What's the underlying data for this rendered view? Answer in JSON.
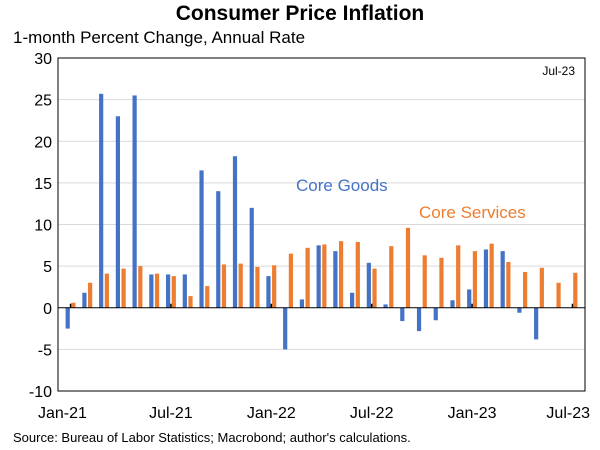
{
  "chart_data": {
    "type": "bar",
    "title": "Consumer Price Inflation",
    "subtitle": "1-month Percent Change, Annual Rate",
    "corner_label": "Jul-23",
    "source": "Source: Bureau of Labor Statistics; Macrobond; author's calculations.",
    "ylim": [
      -10,
      30
    ],
    "yticks": [
      -10,
      -5,
      0,
      5,
      10,
      15,
      20,
      25,
      30
    ],
    "xtick_labels": [
      {
        "label": "Jan-21",
        "index": 0
      },
      {
        "label": "Jul-21",
        "index": 6
      },
      {
        "label": "Jan-22",
        "index": 12
      },
      {
        "label": "Jul-22",
        "index": 18
      },
      {
        "label": "Jan-23",
        "index": 24
      },
      {
        "label": "Jul-23",
        "index": 30
      }
    ],
    "categories": [
      "Jan-21",
      "Feb-21",
      "Mar-21",
      "Apr-21",
      "May-21",
      "Jun-21",
      "Jul-21",
      "Aug-21",
      "Sep-21",
      "Oct-21",
      "Nov-21",
      "Dec-21",
      "Jan-22",
      "Feb-22",
      "Mar-22",
      "Apr-22",
      "May-22",
      "Jun-22",
      "Jul-22",
      "Aug-22",
      "Sep-22",
      "Oct-22",
      "Nov-22",
      "Dec-22",
      "Jan-23",
      "Feb-23",
      "Mar-23",
      "Apr-23",
      "May-23",
      "Jun-23",
      "Jul-23"
    ],
    "series": [
      {
        "name": "Core Goods",
        "color": "#4472C4",
        "values": [
          -2.5,
          1.8,
          25.7,
          23.0,
          25.5,
          4.0,
          4.0,
          4.0,
          16.5,
          14.0,
          18.2,
          12.0,
          3.8,
          -5.0,
          1.0,
          7.5,
          6.8,
          1.8,
          5.4,
          0.4,
          -1.6,
          -2.8,
          -1.5,
          0.9,
          2.2,
          7.0,
          6.8,
          -0.6,
          -3.8,
          0,
          0
        ]
      },
      {
        "name": "Core Services",
        "color": "#ED7D31",
        "values": [
          0.6,
          3.0,
          4.1,
          4.7,
          5.0,
          4.1,
          3.8,
          1.4,
          2.6,
          5.2,
          5.3,
          4.9,
          5.1,
          6.5,
          7.2,
          7.6,
          8.0,
          7.9,
          4.7,
          7.4,
          9.6,
          6.3,
          6.0,
          7.5,
          6.8,
          7.7,
          5.5,
          4.3,
          4.8,
          3.0,
          4.2
        ]
      }
    ]
  }
}
